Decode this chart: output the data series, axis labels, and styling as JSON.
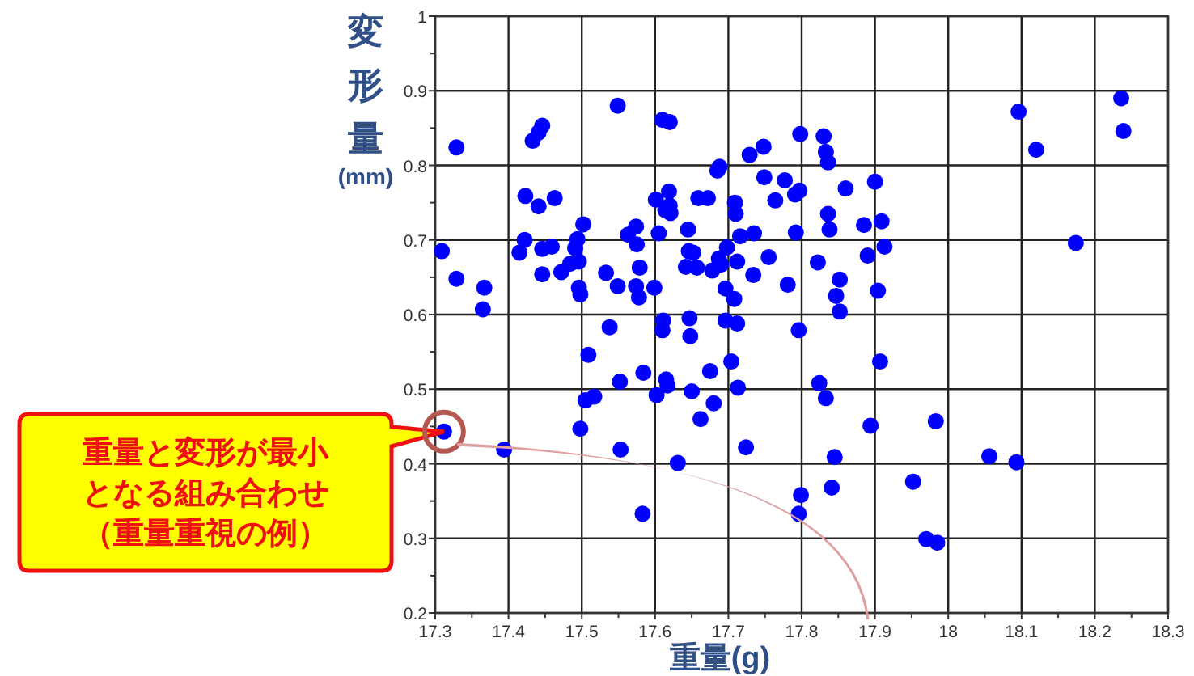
{
  "chart_data": {
    "type": "scatter",
    "xlabel": "重量(g)",
    "ylabel": "変形量\n(mm)",
    "xlim": [
      17.3,
      18.3
    ],
    "ylim": [
      0.2,
      1
    ],
    "xticks": [
      17.3,
      17.4,
      17.5,
      17.6,
      17.7,
      17.8,
      17.9,
      18,
      18.1,
      18.2,
      18.3
    ],
    "yticks": [
      0.2,
      0.3,
      0.4,
      0.5,
      0.6,
      0.7,
      0.8,
      0.9,
      1
    ],
    "grid": true,
    "marker": "circle",
    "annotations": [
      "重量と変形が最小となる組み合わせ（重量重視の例）"
    ],
    "series": [
      {
        "color": "#0000ff",
        "x": [
          17.309,
          17.329,
          17.329,
          17.367,
          17.365,
          17.415,
          17.422,
          17.423,
          17.441,
          17.446,
          17.446,
          17.433,
          17.441,
          17.446,
          17.459,
          17.463,
          17.472,
          17.484,
          17.491,
          17.494,
          17.496,
          17.496,
          17.498,
          17.502,
          17.533,
          17.549,
          17.549,
          17.538,
          17.563,
          17.574,
          17.575,
          17.574,
          17.579,
          17.578,
          17.599,
          17.605,
          17.601,
          17.61,
          17.62,
          17.619,
          17.62,
          17.614,
          17.621,
          17.611,
          17.61,
          17.645,
          17.646,
          17.652,
          17.642,
          17.657,
          17.647,
          17.648,
          17.659,
          17.672,
          17.678,
          17.685,
          17.688,
          17.687,
          17.69,
          17.698,
          17.696,
          17.708,
          17.696,
          17.712,
          17.709,
          17.71,
          17.716,
          17.712,
          17.729,
          17.748,
          17.749,
          17.735,
          17.734,
          17.755,
          17.764,
          17.777,
          17.781,
          17.791,
          17.797,
          17.792,
          17.798,
          17.796,
          17.83,
          17.833,
          17.836,
          17.86,
          17.9,
          17.836,
          17.838,
          17.885,
          17.909,
          17.913,
          17.89,
          17.822,
          17.852,
          17.847,
          17.852,
          17.904,
          18.096,
          18.12,
          18.236,
          18.239,
          18.174,
          17.509,
          17.552,
          17.584,
          17.615,
          17.617,
          17.675,
          17.704,
          17.713,
          17.505,
          17.517,
          17.602,
          17.65,
          17.68,
          17.662,
          17.498,
          17.553,
          17.631,
          17.724,
          17.583,
          17.799,
          17.796,
          17.312,
          17.394,
          17.907,
          17.824,
          17.833,
          17.894,
          17.983,
          17.845,
          18.056,
          18.093,
          17.952,
          17.841,
          17.97,
          17.985
        ],
        "values": [
          0.685,
          0.824,
          0.648,
          0.636,
          0.607,
          0.683,
          0.7,
          0.759,
          0.745,
          0.654,
          0.688,
          0.833,
          0.844,
          0.853,
          0.691,
          0.756,
          0.657,
          0.668,
          0.689,
          0.701,
          0.671,
          0.636,
          0.627,
          0.721,
          0.656,
          0.88,
          0.638,
          0.583,
          0.707,
          0.718,
          0.694,
          0.638,
          0.663,
          0.623,
          0.636,
          0.709,
          0.754,
          0.861,
          0.858,
          0.765,
          0.746,
          0.74,
          0.736,
          0.592,
          0.579,
          0.714,
          0.685,
          0.683,
          0.664,
          0.663,
          0.595,
          0.571,
          0.756,
          0.756,
          0.659,
          0.793,
          0.798,
          0.675,
          0.667,
          0.69,
          0.635,
          0.621,
          0.592,
          0.588,
          0.75,
          0.735,
          0.705,
          0.671,
          0.814,
          0.825,
          0.784,
          0.709,
          0.653,
          0.677,
          0.753,
          0.78,
          0.64,
          0.761,
          0.766,
          0.71,
          0.842,
          0.579,
          0.839,
          0.818,
          0.804,
          0.769,
          0.778,
          0.735,
          0.714,
          0.72,
          0.725,
          0.691,
          0.679,
          0.67,
          0.647,
          0.625,
          0.604,
          0.632,
          0.872,
          0.821,
          0.89,
          0.846,
          0.696,
          0.546,
          0.51,
          0.522,
          0.513,
          0.505,
          0.524,
          0.537,
          0.502,
          0.485,
          0.49,
          0.492,
          0.497,
          0.481,
          0.46,
          0.447,
          0.419,
          0.401,
          0.422,
          0.333,
          0.358,
          0.333,
          0.443,
          0.419,
          0.537,
          0.508,
          0.488,
          0.451,
          0.457,
          0.409,
          0.41,
          0.402,
          0.376,
          0.368,
          0.299,
          0.294
        ]
      }
    ]
  }
}
